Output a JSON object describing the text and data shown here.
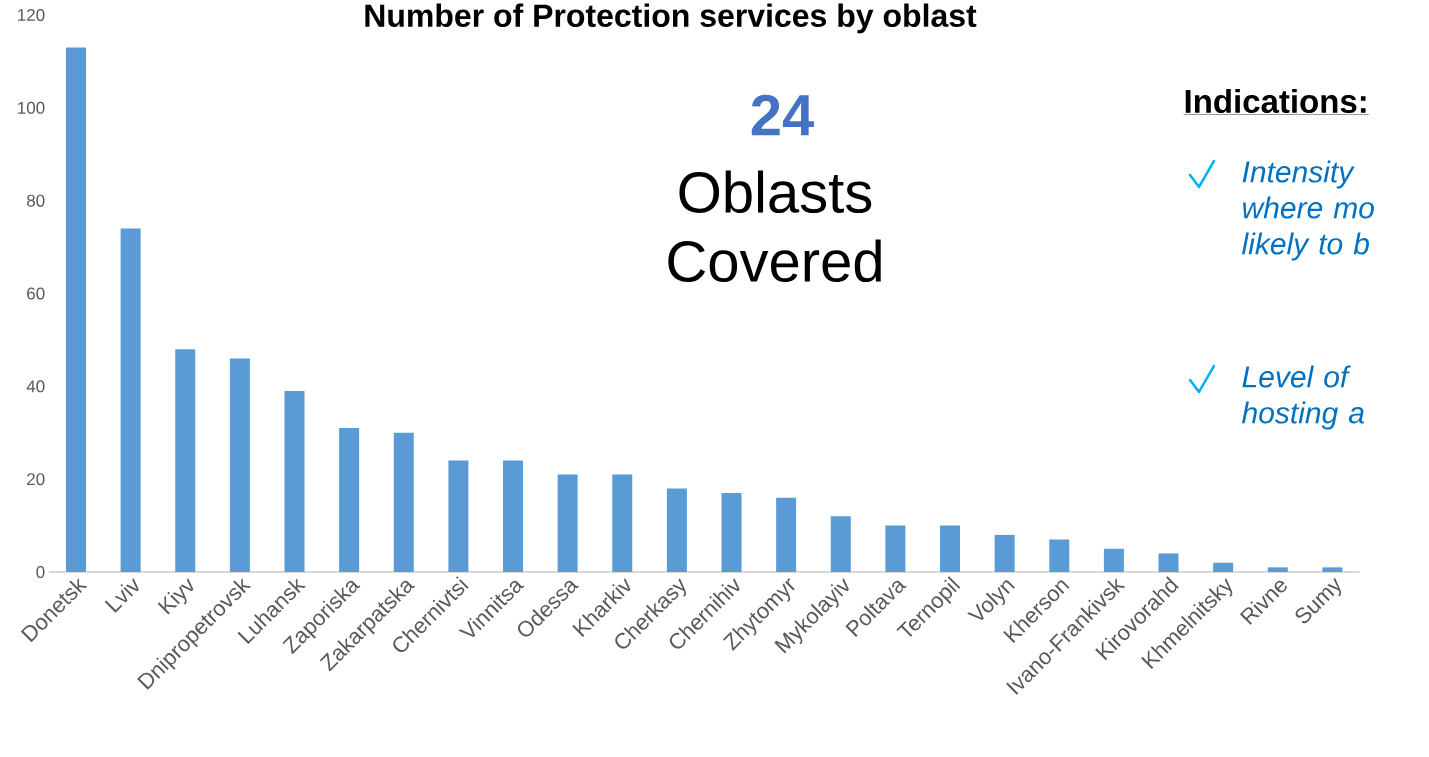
{
  "chart_data": {
    "type": "bar",
    "title": "Number of Protection services by oblast",
    "categories": [
      "Donetsk",
      "Lviv",
      "Kiyv",
      "Dnipropetrovsk",
      "Luhansk",
      "Zaporiska",
      "Zakarpatska",
      "Chernivtsi",
      "Vinnitsa",
      "Odessa",
      "Kharkiv",
      "Cherkasy",
      "Chernihiv",
      "Zhytomyr",
      "Mykolayiv",
      "Poltava",
      "Ternopil",
      "Volyn",
      "Kherson",
      "Ivano-Frankivsk",
      "Kirovorahd",
      "Khmelnitsky",
      "Rivne",
      "Sumy"
    ],
    "values": [
      113,
      74,
      48,
      46,
      39,
      31,
      30,
      24,
      24,
      21,
      21,
      18,
      17,
      16,
      12,
      10,
      10,
      8,
      7,
      5,
      4,
      2,
      1,
      1
    ],
    "color": "#5b9bd5",
    "ylim": [
      0,
      120
    ],
    "yticks": [
      0,
      20,
      40,
      60,
      80,
      100,
      120
    ],
    "grid": false,
    "annotations": [
      "24",
      "Oblasts Covered",
      "Indications:",
      "Intensity where mo likely to b",
      "Level of hosting a"
    ]
  }
}
